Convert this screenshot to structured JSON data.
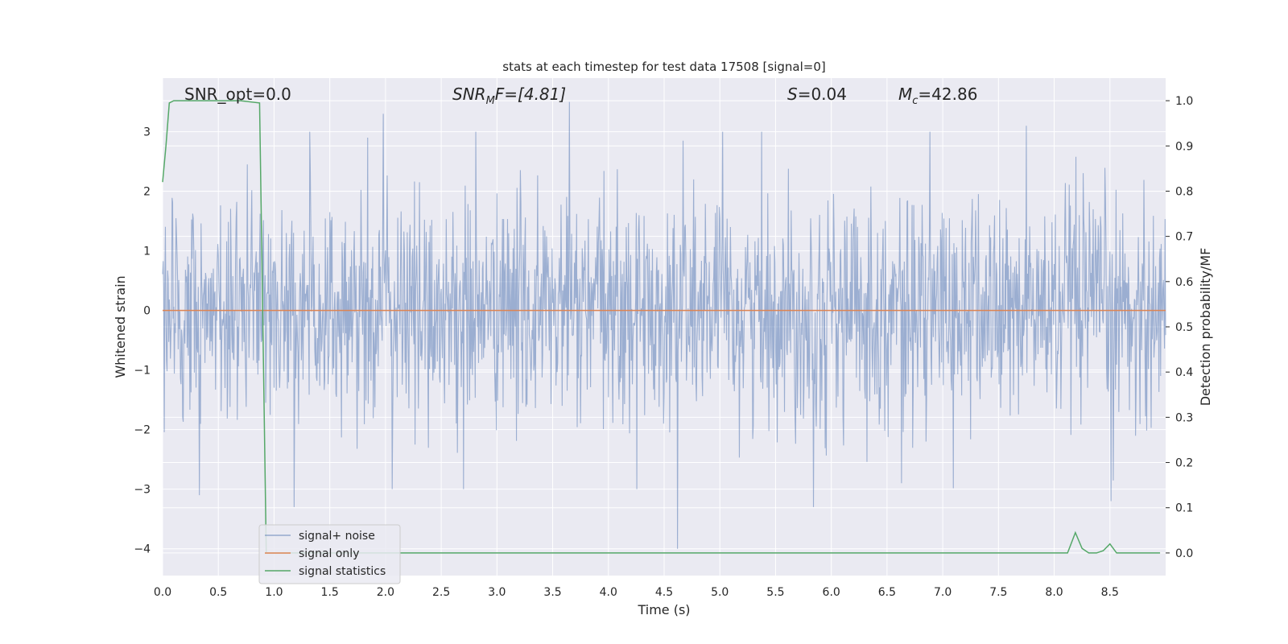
{
  "chart_data": {
    "type": "line",
    "title": "stats at each timestep for test data 17508 [signal=0]",
    "xlabel": "Time (s)",
    "ylabel": "Whitened strain",
    "ylabel_right": "Detection probability/MF",
    "xlim": [
      0.0,
      9.0
    ],
    "ylim_left": [
      -4.45,
      3.9
    ],
    "ylim_right": [
      -0.05,
      1.05
    ],
    "xticks": [
      "0.0",
      "0.5",
      "1.0",
      "1.5",
      "2.0",
      "2.5",
      "3.0",
      "3.5",
      "4.0",
      "4.5",
      "5.0",
      "5.5",
      "6.0",
      "6.5",
      "7.0",
      "7.5",
      "8.0",
      "8.5"
    ],
    "yticks_left": [
      "3",
      "2",
      "1",
      "0",
      "−1",
      "−2",
      "−3",
      "−4"
    ],
    "yticks_right": [
      "1.0",
      "0.9",
      "0.8",
      "0.7",
      "0.6",
      "0.5",
      "0.4",
      "0.3",
      "0.2",
      "0.1",
      "0.0"
    ],
    "grid": true,
    "legend_position": "lower-left",
    "annotations": {
      "snr_opt": "SNR_opt=0.0",
      "snr_mf_main": "SNR",
      "snr_mf_sub": "M",
      "snr_mf_rest": "F=[4.81]",
      "s_main": "S",
      "s_rest": "=0.04",
      "mc_main": "M",
      "mc_sub": "c",
      "mc_rest": "=42.86"
    },
    "series": [
      {
        "name": "signal+ noise",
        "color": "#4c72b0",
        "axis": "left",
        "description_values": "dense Gaussian-like whitened noise, roughly within [-3.3, 3.5]; notable peaks near t=1.98 (3.3), t=3.65 (3.5), t=7.75 (3.1); notable dips near t=4.62 (-4.0), t=5.84 (-3.3)"
      },
      {
        "name": "signal only",
        "color": "#dd8452",
        "axis": "left",
        "x": [
          0.0,
          9.0
        ],
        "y": [
          0.0,
          0.0
        ]
      },
      {
        "name": "signal statistics",
        "color": "#55a868",
        "axis": "right",
        "x": [
          0.0,
          0.03,
          0.06,
          0.1,
          0.15,
          0.3,
          0.5,
          0.7,
          0.87,
          0.9,
          0.93,
          1.0,
          2.0,
          3.0,
          4.0,
          5.0,
          6.0,
          7.0,
          8.0,
          8.12,
          8.19,
          8.25,
          8.31,
          8.38,
          8.44,
          8.5,
          8.56,
          8.62,
          8.7,
          8.8,
          8.95
        ],
        "y": [
          0.82,
          0.9,
          0.995,
          1.0,
          1.0,
          1.0,
          1.0,
          1.0,
          0.995,
          0.5,
          0.0,
          0.0,
          0.0,
          0.0,
          0.0,
          0.0,
          0.0,
          0.0,
          0.0,
          0.0,
          0.045,
          0.01,
          0.0,
          0.0,
          0.005,
          0.02,
          0.0,
          0.0,
          0.0,
          0.0,
          0.0
        ]
      }
    ]
  }
}
